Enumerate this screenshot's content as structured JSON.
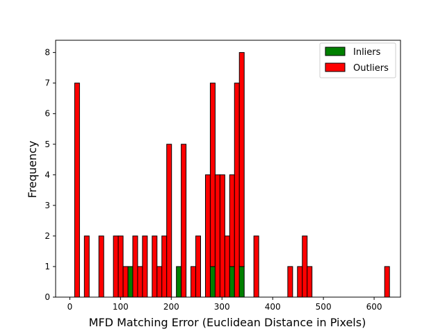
{
  "chart_data": {
    "type": "bar",
    "subtype": "stacked-histogram",
    "title": "",
    "xlabel": "MFD Matching Error (Euclidean Distance in Pixels)",
    "ylabel": "Frequency",
    "xlim": [
      -28,
      652
    ],
    "ylim": [
      0,
      8.4
    ],
    "xticks": [
      0,
      100,
      200,
      300,
      400,
      500,
      600
    ],
    "yticks": [
      0,
      1,
      2,
      3,
      4,
      5,
      6,
      7,
      8
    ],
    "bin_start": 0,
    "bin_width": 9.55,
    "grid": false,
    "legend_position": "top-right",
    "series": [
      {
        "name": "Inliers",
        "color": "#008000",
        "values": [
          0,
          0,
          0,
          0,
          0,
          0,
          0,
          0,
          0,
          0,
          0,
          0,
          1,
          0,
          0,
          0,
          0,
          0,
          0,
          0,
          0,
          0,
          1,
          0,
          0,
          0,
          0,
          0,
          0,
          1,
          0,
          0,
          0,
          1,
          0,
          1,
          0,
          0,
          0,
          0,
          0,
          0,
          0,
          0,
          0,
          0,
          0,
          0,
          0,
          0,
          0,
          0,
          0,
          0,
          0,
          0,
          0,
          0,
          0,
          0,
          0,
          0,
          0,
          0,
          0,
          0
        ]
      },
      {
        "name": "Outliers",
        "color": "#ff0000",
        "values": [
          0,
          7,
          0,
          2,
          0,
          0,
          2,
          0,
          0,
          2,
          2,
          1,
          0,
          2,
          1,
          2,
          0,
          2,
          1,
          2,
          5,
          0,
          0,
          5,
          0,
          1,
          2,
          0,
          4,
          6,
          4,
          4,
          2,
          3,
          7,
          7,
          0,
          0,
          2,
          0,
          0,
          0,
          0,
          0,
          0,
          1,
          0,
          1,
          2,
          1,
          0,
          0,
          0,
          0,
          0,
          0,
          0,
          0,
          0,
          0,
          0,
          0,
          0,
          0,
          0,
          1
        ]
      }
    ]
  }
}
